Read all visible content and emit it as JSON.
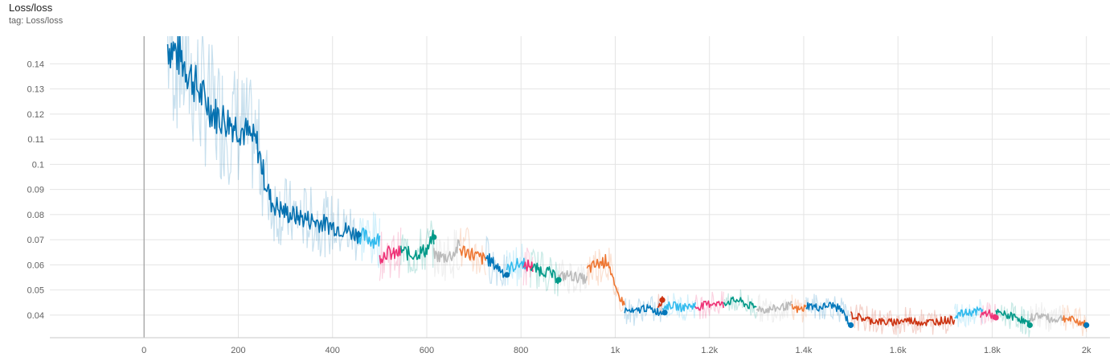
{
  "header": {
    "title": "Loss/loss",
    "subtitle": "tag: Loss/loss"
  },
  "chart_data": {
    "type": "line",
    "title": "Loss/loss",
    "subtitle": "tag: Loss/loss",
    "xlabel": "",
    "ylabel": "",
    "xlim": [
      -200,
      2050
    ],
    "ylim": [
      0.031,
      0.151
    ],
    "grid": true,
    "legend": "none",
    "x_ticks": [
      0,
      200,
      400,
      600,
      800,
      1000,
      1200,
      1400,
      1600,
      1800,
      2000
    ],
    "x_tick_labels": [
      "0",
      "200",
      "400",
      "600",
      "800",
      "1k",
      "1.2k",
      "1.4k",
      "1.6k",
      "1.8k",
      "2k"
    ],
    "y_ticks": [
      0.04,
      0.05,
      0.06,
      0.07,
      0.08,
      0.09,
      0.1,
      0.11,
      0.12,
      0.13,
      0.14
    ],
    "y_tick_labels": [
      "0.04",
      "0.05",
      "0.06",
      "0.07",
      "0.08",
      "0.09",
      "0.1",
      "0.11",
      "0.12",
      "0.13",
      "0.14"
    ],
    "series": [
      {
        "color": "#0571b0",
        "x": [
          50,
          80,
          100,
          120,
          150,
          170,
          200,
          220,
          240,
          255,
          270,
          290,
          310,
          330,
          350,
          370,
          390,
          410,
          440,
          455
        ],
        "y": [
          0.148,
          0.142,
          0.135,
          0.128,
          0.12,
          0.118,
          0.115,
          0.112,
          0.108,
          0.095,
          0.085,
          0.082,
          0.08,
          0.079,
          0.078,
          0.077,
          0.076,
          0.075,
          0.073,
          0.072
        ]
      },
      {
        "color": "#33bbee",
        "x": [
          455,
          470,
          485,
          500
        ],
        "y": [
          0.072,
          0.071,
          0.07,
          0.07
        ]
      },
      {
        "color": "#ee3377",
        "x": [
          500,
          515,
          530,
          545
        ],
        "y": [
          0.063,
          0.065,
          0.064,
          0.065
        ]
      },
      {
        "color": "#009988",
        "x": [
          545,
          565,
          585,
          600,
          615
        ],
        "y": [
          0.066,
          0.064,
          0.065,
          0.066,
          0.071
        ]
      },
      {
        "color": "#bbbbbb",
        "x": [
          615,
          635,
          655,
          670
        ],
        "y": [
          0.064,
          0.063,
          0.064,
          0.068
        ]
      },
      {
        "color": "#ee7733",
        "x": [
          670,
          690,
          710,
          725
        ],
        "y": [
          0.066,
          0.065,
          0.063,
          0.062
        ]
      },
      {
        "color": "#0077bb",
        "x": [
          725,
          745,
          770
        ],
        "y": [
          0.063,
          0.06,
          0.056
        ]
      },
      {
        "color": "#33bbee",
        "x": [
          770,
          790,
          810
        ],
        "y": [
          0.058,
          0.06,
          0.061
        ]
      },
      {
        "color": "#ee3377",
        "x": [
          805,
          815,
          825
        ],
        "y": [
          0.058,
          0.06,
          0.059
        ]
      },
      {
        "color": "#009988",
        "x": [
          820,
          840,
          860,
          880
        ],
        "y": [
          0.059,
          0.058,
          0.057,
          0.054
        ]
      },
      {
        "color": "#bbbbbb",
        "x": [
          880,
          900,
          920,
          940
        ],
        "y": [
          0.055,
          0.056,
          0.055,
          0.054
        ]
      },
      {
        "color": "#ee7733",
        "x": [
          940,
          960,
          985,
          1000,
          1020
        ],
        "y": [
          0.058,
          0.06,
          0.062,
          0.05,
          0.044
        ]
      },
      {
        "color": "#0077bb",
        "x": [
          1020,
          1040,
          1060,
          1080,
          1100
        ],
        "y": [
          0.042,
          0.041,
          0.043,
          0.042,
          0.041
        ]
      },
      {
        "color": "#cc3311",
        "x": [
          1090,
          1100
        ],
        "y": [
          0.044,
          0.046
        ]
      },
      {
        "color": "#33bbee",
        "x": [
          1100,
          1120,
          1140,
          1170
        ],
        "y": [
          0.043,
          0.044,
          0.043,
          0.044
        ]
      },
      {
        "color": "#ee3377",
        "x": [
          1170,
          1190,
          1210,
          1230
        ],
        "y": [
          0.043,
          0.044,
          0.045,
          0.044
        ]
      },
      {
        "color": "#009988",
        "x": [
          1230,
          1260,
          1280,
          1300
        ],
        "y": [
          0.045,
          0.046,
          0.044,
          0.043
        ]
      },
      {
        "color": "#bbbbbb",
        "x": [
          1300,
          1320,
          1350,
          1375
        ],
        "y": [
          0.043,
          0.042,
          0.043,
          0.044
        ]
      },
      {
        "color": "#ee7733",
        "x": [
          1375,
          1390,
          1405
        ],
        "y": [
          0.043,
          0.042,
          0.043
        ]
      },
      {
        "color": "#0077bb",
        "x": [
          1405,
          1430,
          1460,
          1480,
          1500
        ],
        "y": [
          0.044,
          0.043,
          0.044,
          0.042,
          0.036
        ]
      },
      {
        "color": "#cc3311",
        "x": [
          1500,
          1540,
          1580,
          1620,
          1660,
          1700,
          1720
        ],
        "y": [
          0.04,
          0.038,
          0.037,
          0.038,
          0.037,
          0.038,
          0.038
        ]
      },
      {
        "color": "#33bbee",
        "x": [
          1720,
          1750,
          1780
        ],
        "y": [
          0.04,
          0.041,
          0.042
        ]
      },
      {
        "color": "#ee3377",
        "x": [
          1775,
          1790,
          1808
        ],
        "y": [
          0.04,
          0.041,
          0.039
        ]
      },
      {
        "color": "#009988",
        "x": [
          1808,
          1830,
          1855,
          1880
        ],
        "y": [
          0.041,
          0.04,
          0.039,
          0.036
        ]
      },
      {
        "color": "#bbbbbb",
        "x": [
          1880,
          1905,
          1930,
          1950
        ],
        "y": [
          0.039,
          0.04,
          0.038,
          0.039
        ]
      },
      {
        "color": "#ee7733",
        "x": [
          1950,
          1970,
          1990,
          2000
        ],
        "y": [
          0.039,
          0.038,
          0.037,
          0.036
        ]
      }
    ],
    "end_points": [
      {
        "color": "#0571b0",
        "x": 455,
        "y": 0.072
      },
      {
        "color": "#009988",
        "x": 615,
        "y": 0.071
      },
      {
        "color": "#0571b0",
        "x": 770,
        "y": 0.056
      },
      {
        "color": "#009988",
        "x": 880,
        "y": 0.054
      },
      {
        "color": "#cc3311",
        "x": 1100,
        "y": 0.046
      },
      {
        "color": "#0077bb",
        "x": 1105,
        "y": 0.041
      },
      {
        "color": "#0077bb",
        "x": 1500,
        "y": 0.036
      },
      {
        "color": "#ee3377",
        "x": 1808,
        "y": 0.039
      },
      {
        "color": "#009988",
        "x": 1880,
        "y": 0.036
      },
      {
        "color": "#0077bb",
        "x": 2000,
        "y": 0.036
      }
    ]
  }
}
